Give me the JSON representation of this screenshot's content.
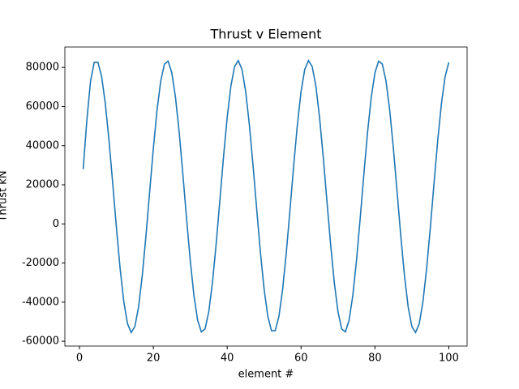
{
  "chart_data": {
    "type": "line",
    "title": "Thrust v Element",
    "xlabel": "element #",
    "ylabel": "Thrust kN",
    "x": [
      1,
      2,
      3,
      4,
      5,
      6,
      7,
      8,
      9,
      10,
      11,
      12,
      13,
      14,
      15,
      16,
      17,
      18,
      19,
      20,
      21,
      22,
      23,
      24,
      25,
      26,
      27,
      28,
      29,
      30,
      31,
      32,
      33,
      34,
      35,
      36,
      37,
      38,
      39,
      40,
      41,
      42,
      43,
      44,
      45,
      46,
      47,
      48,
      49,
      50,
      51,
      52,
      53,
      54,
      55,
      56,
      57,
      58,
      59,
      60,
      61,
      62,
      63,
      64,
      65,
      66,
      67,
      68,
      69,
      70,
      71,
      72,
      73,
      74,
      75,
      76,
      77,
      78,
      79,
      80,
      81,
      82,
      83,
      84,
      85,
      86,
      87,
      88,
      89,
      90,
      91,
      92,
      93,
      94,
      95,
      96,
      97,
      98,
      99,
      100
    ],
    "series": [
      {
        "name": "Thrust",
        "color": "#1f77b4",
        "values": [
          28000,
          53000,
          73000,
          82600,
          82600,
          75300,
          61500,
          42700,
          20800,
          -1800,
          -22700,
          -39700,
          -51000,
          -55500,
          -52500,
          -42500,
          -26500,
          -6200,
          16300,
          38500,
          58100,
          73000,
          81700,
          83200,
          77300,
          64700,
          46800,
          25300,
          2700,
          -18800,
          -36700,
          -49300,
          -55200,
          -53700,
          -45000,
          -30100,
          -10500,
          11700,
          34200,
          54500,
          70500,
          80500,
          83500,
          79000,
          67700,
          50700,
          29800,
          7200,
          -14700,
          -33500,
          -47300,
          -54600,
          -54600,
          -47300,
          -33500,
          -14700,
          7200,
          29800,
          50700,
          67700,
          79000,
          83500,
          80500,
          70500,
          54500,
          34200,
          11700,
          -10500,
          -30100,
          -45000,
          -53700,
          -55200,
          -49300,
          -36700,
          -18800,
          2700,
          25300,
          46800,
          64700,
          77300,
          83200,
          81700,
          73000,
          58100,
          38500,
          16300,
          -6200,
          -26500,
          -42500,
          -52500,
          -55500,
          -51000,
          -39700,
          -22700,
          -1800,
          20800,
          42700,
          61500,
          75300,
          82600
        ]
      }
    ],
    "xlim": [
      -3.95,
      104.95
    ],
    "xticks": [
      0,
      20,
      40,
      60,
      80,
      100
    ],
    "ylim": [
      -62450,
      90450
    ],
    "yticks": [
      -60000,
      -40000,
      -20000,
      0,
      20000,
      40000,
      60000,
      80000
    ]
  }
}
